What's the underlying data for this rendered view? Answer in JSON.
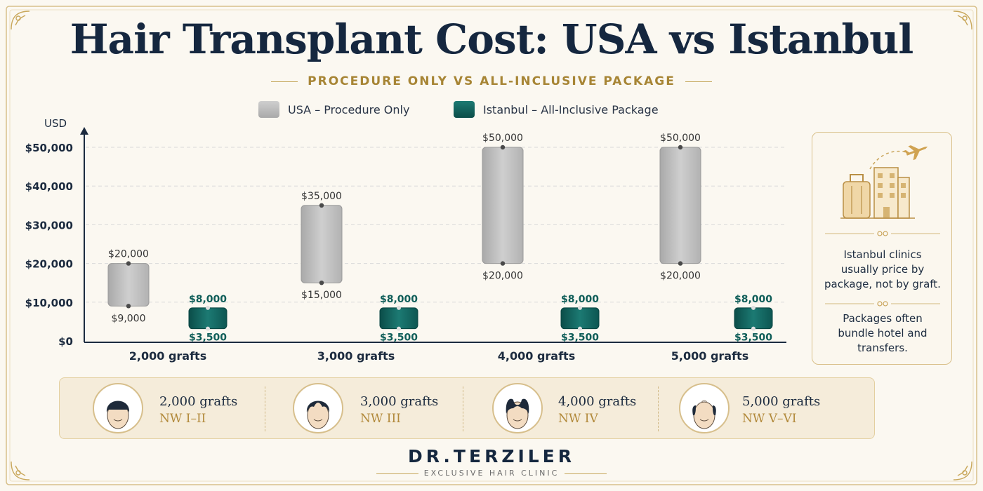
{
  "title": "Hair Transplant Cost: USA vs Istanbul",
  "subtitle": "PROCEDURE ONLY VS ALL-INCLUSIVE PACKAGE",
  "legend": [
    {
      "label": "USA – Procedure Only",
      "color": "#bdbdbd"
    },
    {
      "label": "Istanbul – All-Inclusive Package",
      "color": "#0e5d58"
    }
  ],
  "chart_data": {
    "type": "bar",
    "ylabel": "USD",
    "ylim": [
      0,
      50000
    ],
    "yticks": [
      {
        "value": 0,
        "label": "$0"
      },
      {
        "value": 10000,
        "label": "$10,000"
      },
      {
        "value": 20000,
        "label": "$20,000"
      },
      {
        "value": 30000,
        "label": "$30,000"
      },
      {
        "value": 40000,
        "label": "$40,000"
      },
      {
        "value": 50000,
        "label": "$50,000"
      }
    ],
    "grid": true,
    "categories": [
      "2,000 grafts",
      "3,000 grafts",
      "4,000 grafts",
      "5,000 grafts"
    ],
    "series": [
      {
        "name": "USA – Procedure Only",
        "color": "#bdbdbd",
        "ranges": [
          [
            9000,
            20000
          ],
          [
            15000,
            35000
          ],
          [
            20000,
            50000
          ],
          [
            20000,
            50000
          ]
        ],
        "low_labels": [
          "$9,000",
          "$15,000",
          "$20,000",
          "$20,000"
        ],
        "high_labels": [
          "$20,000",
          "$35,000",
          "$50,000",
          "$50,000"
        ]
      },
      {
        "name": "Istanbul – All-Inclusive Package",
        "color": "#0e5d58",
        "ranges": [
          [
            3500,
            8000
          ],
          [
            3500,
            8000
          ],
          [
            3500,
            8000
          ],
          [
            3500,
            8000
          ]
        ],
        "low_labels": [
          "$3,500",
          "$3,500",
          "$3,500",
          "$3,500"
        ],
        "high_labels": [
          "$8,000",
          "$8,000",
          "$8,000",
          "$8,000"
        ]
      }
    ]
  },
  "info": {
    "line1": [
      "Istanbul clinics",
      "usually price by",
      "package, not by graft."
    ],
    "line2": [
      "Packages often",
      "bundle hotel and",
      "transfers."
    ],
    "icons": [
      "suitcase-icon",
      "hotel-icon",
      "airplane-icon"
    ]
  },
  "grades": [
    {
      "grafts": "2,000 grafts",
      "nw": "NW I–II",
      "icon": "head-nw1-icon"
    },
    {
      "grafts": "3,000 grafts",
      "nw": "NW III",
      "icon": "head-nw3-icon"
    },
    {
      "grafts": "4,000 grafts",
      "nw": "NW IV",
      "icon": "head-nw4-icon"
    },
    {
      "grafts": "5,000 grafts",
      "nw": "NW V–VI",
      "icon": "head-nw5-icon"
    }
  ],
  "brand": {
    "name": "DR.TERZILER",
    "tagline": "EXCLUSIVE HAIR CLINIC"
  }
}
